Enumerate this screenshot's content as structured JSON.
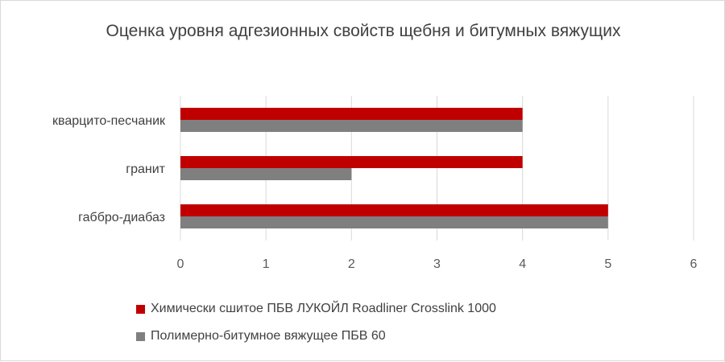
{
  "chart_data": {
    "type": "bar",
    "orientation": "horizontal",
    "title": "Оценка уровня адгезионных свойств щебня и битумных вяжущих",
    "categories": [
      "кварцито-песчаник",
      "гранит",
      "габбро-диабаз"
    ],
    "series": [
      {
        "name": "Химически сшитое ПБВ ЛУКОЙЛ Roadliner Crosslink 1000",
        "values": [
          4,
          4,
          5
        ],
        "color": "#c00000"
      },
      {
        "name": "Полимерно-битумное вяжущее ПБВ 60",
        "values": [
          4,
          2,
          5
        ],
        "color": "#7f7f7f"
      }
    ],
    "xlim": [
      0,
      6
    ],
    "xticks": [
      "0",
      "1",
      "2",
      "3",
      "4",
      "5",
      "6"
    ],
    "grid": true,
    "legend_position": "bottom-left"
  }
}
